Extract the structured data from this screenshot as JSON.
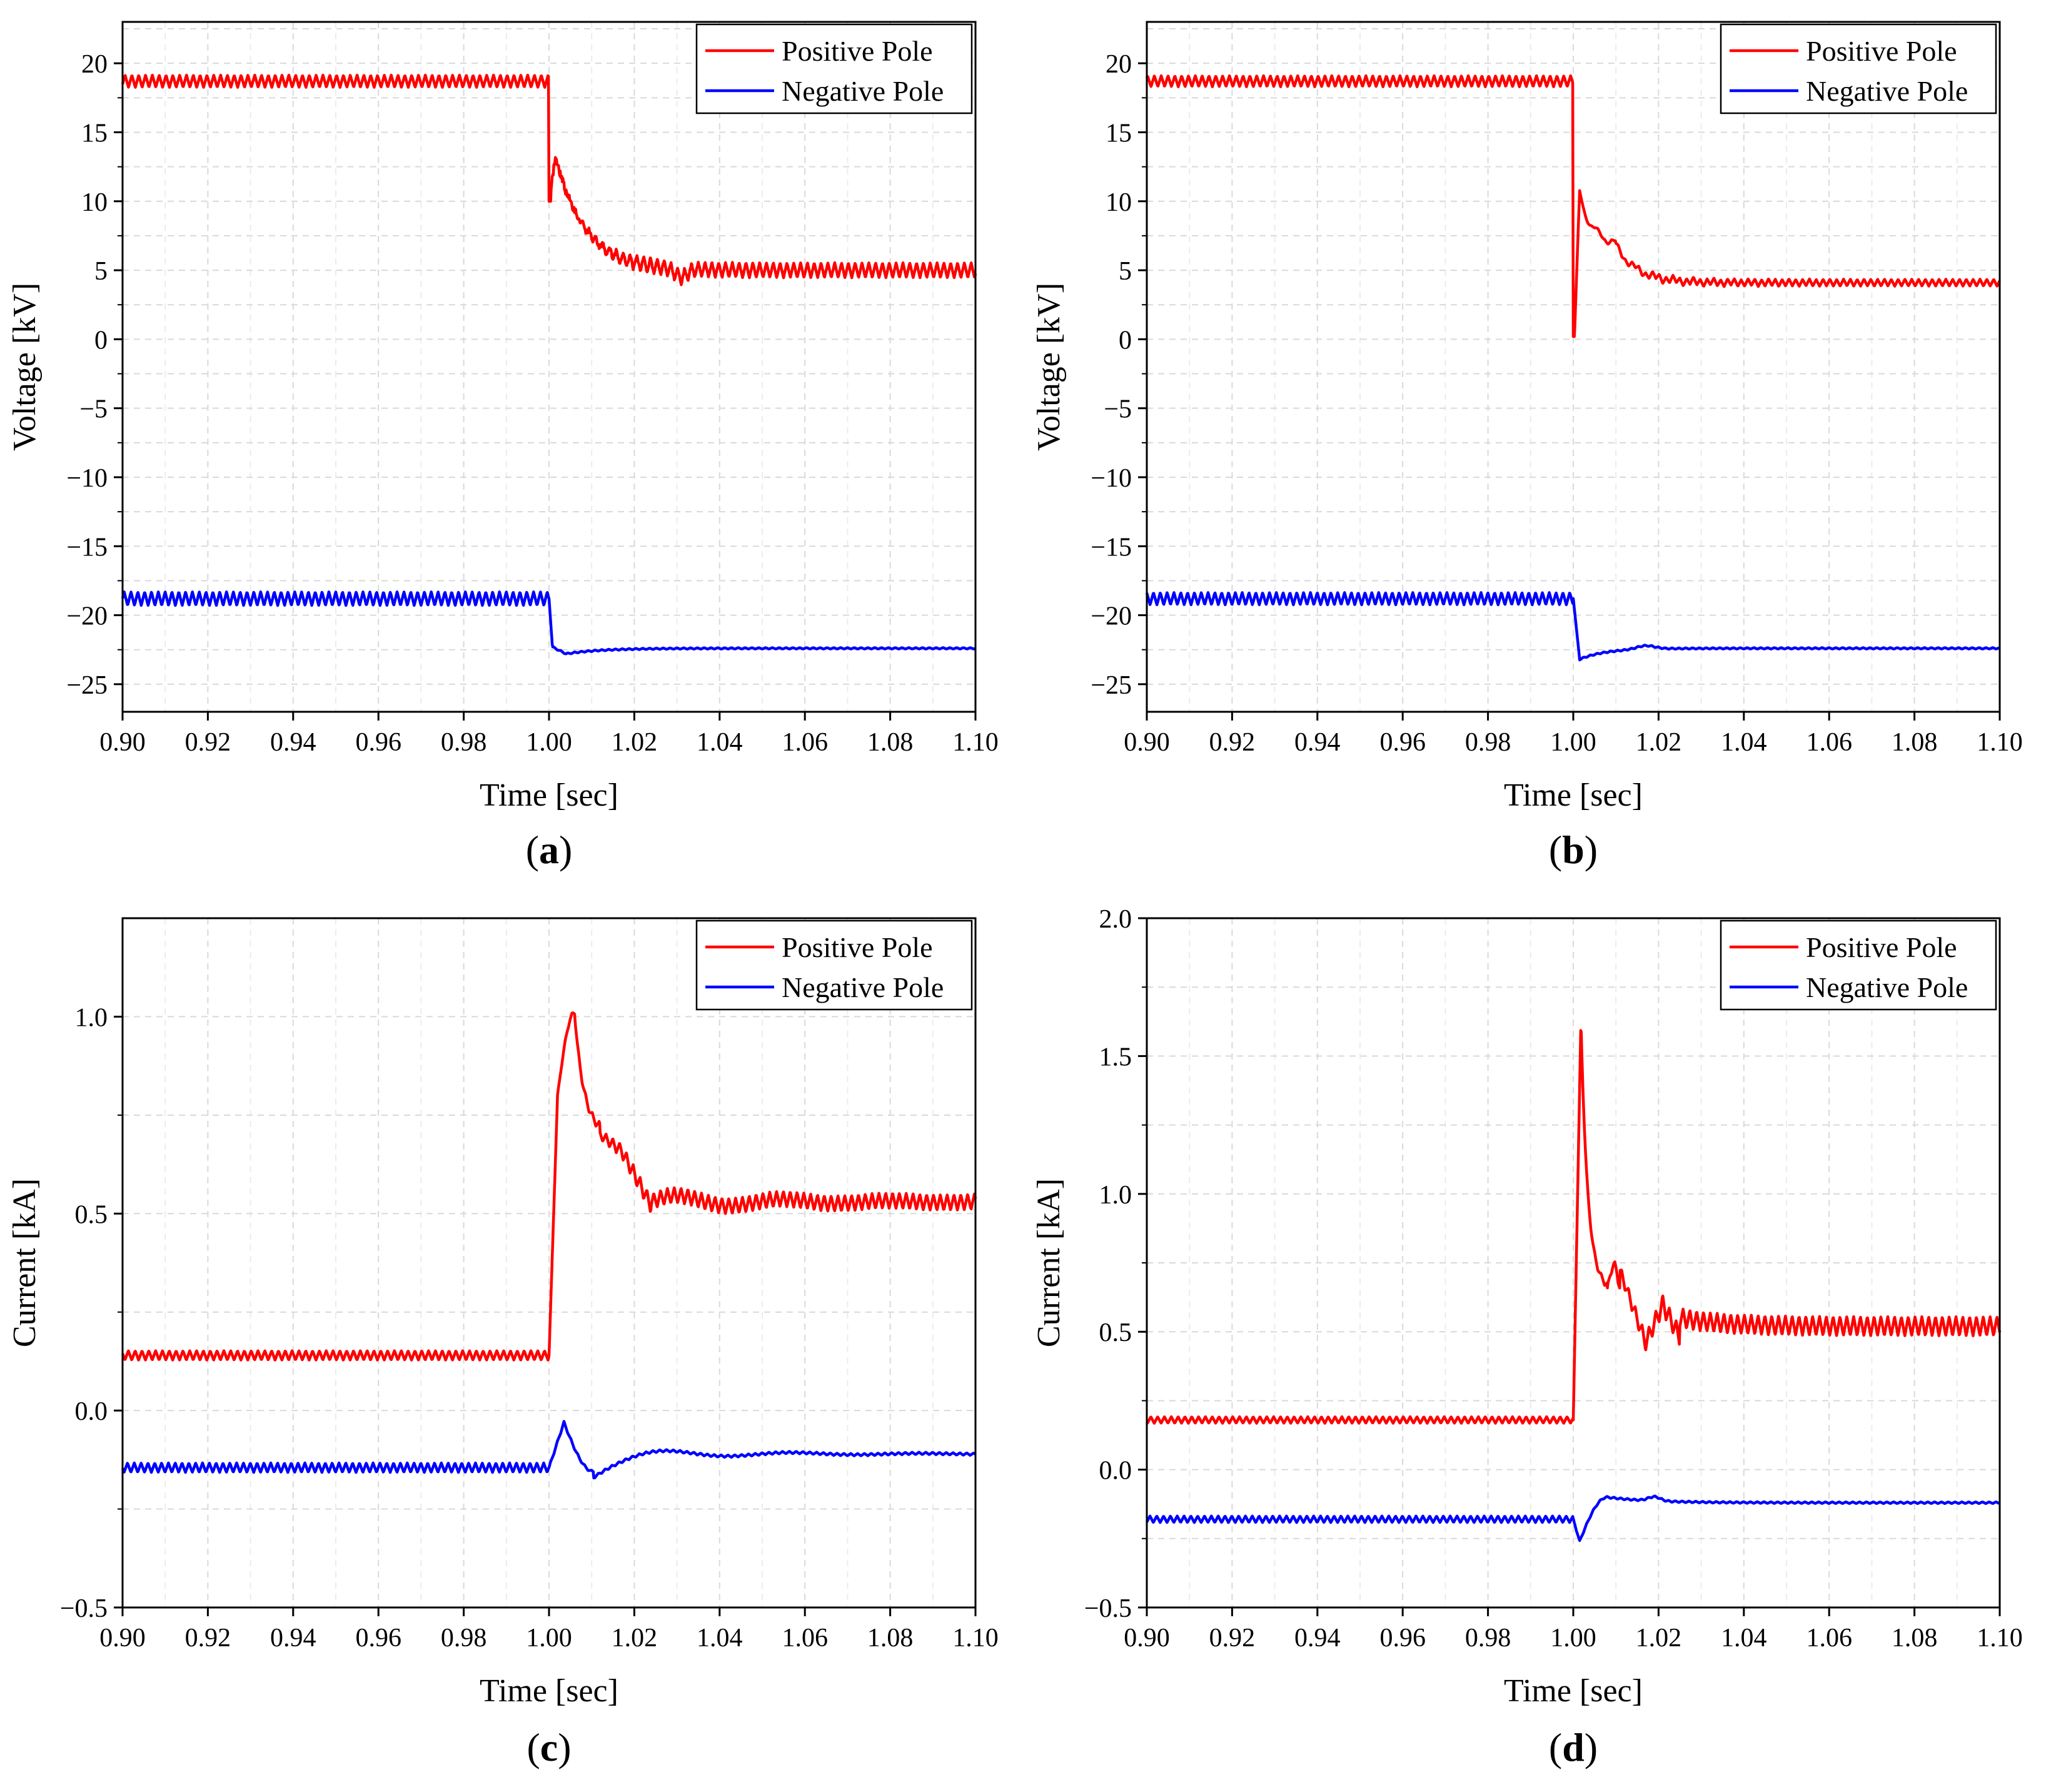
{
  "figure": {
    "time_samples": {
      "start": 0.9,
      "end": 1.1,
      "step": 0.0005
    }
  },
  "chart_data": [
    {
      "panel_label": "a",
      "caption_open": "(",
      "caption_close": ")",
      "type": "line",
      "xlabel": "Time [sec]",
      "ylabel": "Voltage [kV]",
      "xlim": [
        0.9,
        1.1
      ],
      "ylim": [
        -27,
        23
      ],
      "xticks": [
        0.9,
        0.92,
        0.94,
        0.96,
        0.98,
        1.0,
        1.02,
        1.04,
        1.06,
        1.08,
        1.1
      ],
      "xtick_labels": [
        "0.90",
        "0.92",
        "0.94",
        "0.96",
        "0.98",
        "1.00",
        "1.02",
        "1.04",
        "1.06",
        "1.08",
        "1.10"
      ],
      "yticks": [
        20,
        15,
        10,
        5,
        0,
        -5,
        -10,
        -15,
        -20,
        -25
      ],
      "ytick_labels": [
        "20",
        "15",
        "10",
        "5",
        "0",
        "−5",
        "−10",
        "−15",
        "−20",
        "−25"
      ],
      "grid": true,
      "legend_position": "top-right",
      "series": [
        {
          "name": "Positive Pole",
          "color": "#ff0000",
          "pre": 18.7,
          "ripple_pre": 0.45,
          "step_to": 10.0,
          "peak": 13.2,
          "peak_t": 1.0015,
          "tau": 0.007,
          "final": 5.0,
          "ripple_post": 0.55,
          "ripple_period": 0.0016,
          "notch_t": 1.031,
          "notch_d": 0.6
        },
        {
          "name": "Negative Pole",
          "color": "#0000ff",
          "pre": -18.8,
          "ripple_pre": 0.5,
          "step_to": -22.3,
          "dip": -22.8,
          "dip_t": 1.004,
          "final": -22.4,
          "ripple_post": 0.05,
          "ripple_period": 0.0016
        }
      ],
      "legend_labels": [
        "Positive Pole",
        "Negative Pole"
      ]
    },
    {
      "panel_label": "b",
      "caption_open": "(",
      "caption_close": ")",
      "type": "line",
      "xlabel": "Time [sec]",
      "ylabel": "Voltage [kV]",
      "xlim": [
        0.9,
        1.1
      ],
      "ylim": [
        -27,
        23
      ],
      "xticks": [
        0.9,
        0.92,
        0.94,
        0.96,
        0.98,
        1.0,
        1.02,
        1.04,
        1.06,
        1.08,
        1.1
      ],
      "xtick_labels": [
        "0.90",
        "0.92",
        "0.94",
        "0.96",
        "0.98",
        "1.00",
        "1.02",
        "1.04",
        "1.06",
        "1.08",
        "1.10"
      ],
      "yticks": [
        20,
        15,
        10,
        5,
        0,
        -5,
        -10,
        -15,
        -20,
        -25
      ],
      "ytick_labels": [
        "20",
        "15",
        "10",
        "5",
        "0",
        "−5",
        "−10",
        "−15",
        "−20",
        "−25"
      ],
      "grid": true,
      "legend_position": "top-right",
      "series": [
        {
          "name": "Positive Pole",
          "color": "#ff0000",
          "pre": 18.7,
          "ripple_pre": 0.4,
          "step_to": 0.2,
          "peak": 10.5,
          "peak_t": 1.0015,
          "mid": 6.8,
          "mid_t": 1.01,
          "final": 4.1,
          "ripple_post": 0.25,
          "ripple_period": 0.0016
        },
        {
          "name": "Negative Pole",
          "color": "#0000ff",
          "pre": -18.8,
          "ripple_pre": 0.45,
          "step_to": -22.9,
          "dip": -23.2,
          "dip_t": 1.0015,
          "final": -22.4,
          "ripple_post": 0.05,
          "ripple_period": 0.0016
        }
      ],
      "legend_labels": [
        "Positive Pole",
        "Negative Pole"
      ]
    },
    {
      "panel_label": "c",
      "caption_open": "(",
      "caption_close": ")",
      "type": "line",
      "xlabel": "Time [sec]",
      "ylabel": "Current [kA]",
      "xlim": [
        0.9,
        1.1
      ],
      "ylim": [
        -0.5,
        1.25
      ],
      "xticks": [
        0.9,
        0.92,
        0.94,
        0.96,
        0.98,
        1.0,
        1.02,
        1.04,
        1.06,
        1.08,
        1.1
      ],
      "xtick_labels": [
        "0.90",
        "0.92",
        "0.94",
        "0.96",
        "0.98",
        "1.00",
        "1.02",
        "1.04",
        "1.06",
        "1.08",
        "1.10"
      ],
      "yticks": [
        1.0,
        0.5,
        0.0,
        -0.5
      ],
      "ytick_labels": [
        "1.0",
        "0.5",
        "0.0",
        "−0.5"
      ],
      "grid": true,
      "legend_position": "top-right",
      "series": [
        {
          "name": "Positive Pole",
          "color": "#ff0000",
          "pre": 0.14,
          "ripple_pre": 0.012,
          "peak": 1.01,
          "peak_t": 1.006,
          "shoulder": 0.66,
          "shoulder_t": 1.017,
          "final": 0.53,
          "ripple_post": 0.02,
          "ripple_period": 0.0016
        },
        {
          "name": "Negative Pole",
          "color": "#0000ff",
          "pre": -0.145,
          "ripple_pre": 0.012,
          "peak": -0.03,
          "peak_t": 1.0035,
          "dip": -0.155,
          "dip_t": 1.0105,
          "final": -0.11,
          "ripple_post": 0.003,
          "ripple_period": 0.0016
        }
      ],
      "legend_labels": [
        "Positive Pole",
        "Negative Pole"
      ]
    },
    {
      "panel_label": "d",
      "caption_open": "(",
      "caption_close": ")",
      "type": "line",
      "xlabel": "Time [sec]",
      "ylabel": "Current [kA]",
      "xlim": [
        0.9,
        1.1
      ],
      "ylim": [
        -0.5,
        2.0
      ],
      "xticks": [
        0.9,
        0.92,
        0.94,
        0.96,
        0.98,
        1.0,
        1.02,
        1.04,
        1.06,
        1.08,
        1.1
      ],
      "xtick_labels": [
        "0.90",
        "0.92",
        "0.94",
        "0.96",
        "0.98",
        "1.00",
        "1.02",
        "1.04",
        "1.06",
        "1.08",
        "1.10"
      ],
      "yticks": [
        2.0,
        1.5,
        1.0,
        0.5,
        0.0,
        -0.5
      ],
      "ytick_labels": [
        "2.0",
        "1.5",
        "1.0",
        "0.5",
        "0.0",
        "−0.5"
      ],
      "grid": true,
      "legend_position": "top-right",
      "series": [
        {
          "name": "Positive Pole",
          "color": "#ff0000",
          "pre": 0.18,
          "ripple_pre": 0.012,
          "peak": 1.63,
          "peak_t": 1.0018,
          "final": 0.52,
          "ripple_post": 0.035,
          "ripple_period": 0.0016
        },
        {
          "name": "Negative Pole",
          "color": "#0000ff",
          "pre": -0.18,
          "ripple_pre": 0.012,
          "dip": -0.26,
          "dip_t": 1.0015,
          "final": -0.12,
          "ripple_post": 0.003,
          "ripple_period": 0.0016
        }
      ],
      "legend_labels": [
        "Positive Pole",
        "Negative Pole"
      ]
    }
  ]
}
